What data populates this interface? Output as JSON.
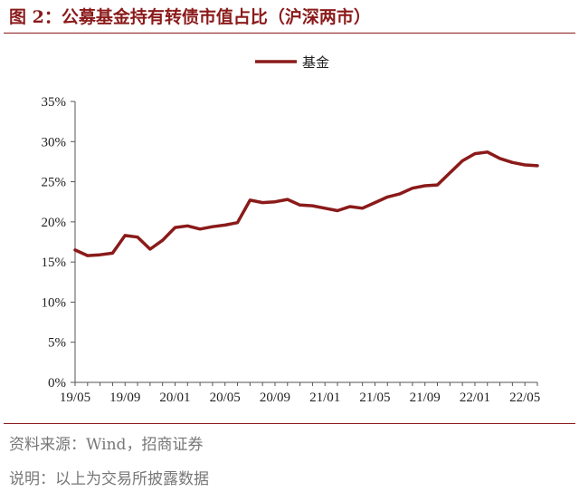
{
  "figure": {
    "title": "图 2：公募基金持有转债市值占比（沪深两市）",
    "source": "资料来源：Wind，招商证券",
    "note": "说明：以上为交易所披露数据",
    "line_color": "#8b1a1a",
    "rule_color": "#8b1a1a"
  },
  "chart_data": {
    "type": "line",
    "title": "",
    "xlabel": "",
    "ylabel": "",
    "legend_position": "top-center",
    "grid": false,
    "ylim": [
      0,
      35
    ],
    "yticks": [
      "0%",
      "5%",
      "10%",
      "15%",
      "20%",
      "25%",
      "30%",
      "35%"
    ],
    "ytick_values": [
      0,
      5,
      10,
      15,
      20,
      25,
      30,
      35
    ],
    "xticks": [
      "19/05",
      "19/09",
      "20/01",
      "20/05",
      "20/09",
      "21/01",
      "21/05",
      "21/09",
      "22/01",
      "22/05"
    ],
    "xtick_index": [
      0,
      4,
      8,
      12,
      16,
      20,
      24,
      28,
      32,
      36
    ],
    "x": [
      "19/05",
      "19/06",
      "19/07",
      "19/08",
      "19/09",
      "19/10",
      "19/11",
      "19/12",
      "20/01",
      "20/02",
      "20/03",
      "20/04",
      "20/05",
      "20/06",
      "20/07",
      "20/08",
      "20/09",
      "20/10",
      "20/11",
      "20/12",
      "21/01",
      "21/02",
      "21/03",
      "21/04",
      "21/05",
      "21/06",
      "21/07",
      "21/08",
      "21/09",
      "21/10",
      "21/11",
      "21/12",
      "22/01",
      "22/02",
      "22/03",
      "22/04",
      "22/05",
      "22/06"
    ],
    "series": [
      {
        "name": "基金",
        "color": "#8b1a1a",
        "values": [
          16.5,
          15.8,
          15.9,
          16.1,
          18.3,
          18.1,
          16.6,
          17.7,
          19.3,
          19.5,
          19.1,
          19.4,
          19.6,
          19.9,
          22.7,
          22.4,
          22.5,
          22.8,
          22.1,
          22.0,
          21.7,
          21.4,
          21.9,
          21.7,
          22.4,
          23.1,
          23.5,
          24.2,
          24.5,
          24.6,
          26.1,
          27.6,
          28.5,
          28.7,
          27.9,
          27.4,
          27.1,
          27.0
        ]
      }
    ]
  }
}
